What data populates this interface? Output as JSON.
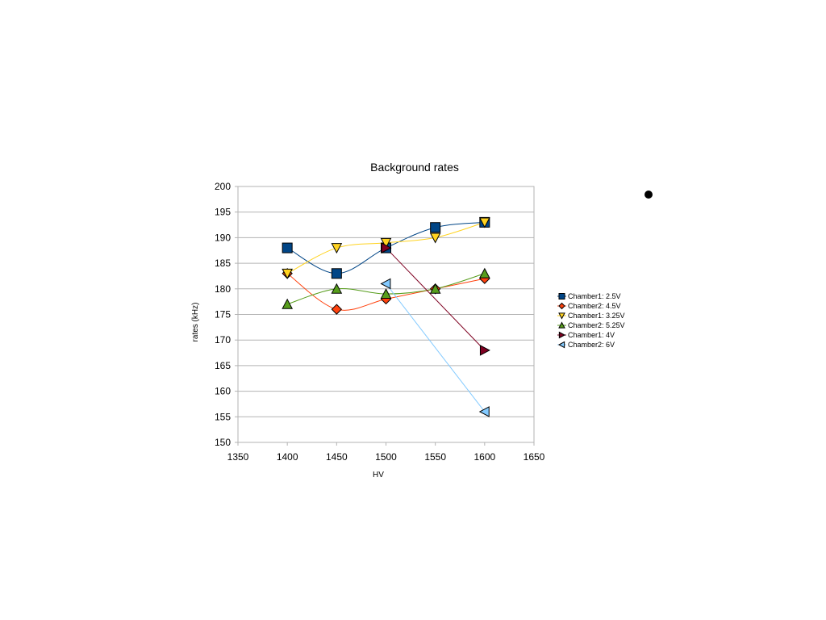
{
  "chart_data": {
    "type": "line",
    "title": "Background rates",
    "xlabel": "HV",
    "ylabel": "rates (kHz)",
    "xlim": [
      1350,
      1650
    ],
    "ylim": [
      150,
      200
    ],
    "x_ticks": [
      1350,
      1400,
      1450,
      1500,
      1550,
      1600,
      1650
    ],
    "y_ticks": [
      150,
      155,
      160,
      165,
      170,
      175,
      180,
      185,
      190,
      195,
      200
    ],
    "grid": "horizontal",
    "legend_position": "right",
    "series": [
      {
        "name": "Chamber1: 2.5V",
        "color": "#004586",
        "marker": "square",
        "smooth": true,
        "x": [
          1400,
          1450,
          1500,
          1550,
          1600
        ],
        "y": [
          188,
          183,
          188,
          192,
          193
        ]
      },
      {
        "name": "Chamber2: 4.5V",
        "color": "#ff420e",
        "marker": "diamond",
        "smooth": true,
        "x": [
          1400,
          1450,
          1500,
          1550,
          1600
        ],
        "y": [
          183,
          176,
          178,
          180,
          182
        ]
      },
      {
        "name": "Chamber1: 3.25V",
        "color": "#ffd320",
        "marker": "triangle-down",
        "smooth": true,
        "x": [
          1400,
          1450,
          1500,
          1550,
          1600
        ],
        "y": [
          183,
          188,
          189,
          190,
          193
        ]
      },
      {
        "name": "Chamber2: 5.25V",
        "color": "#579d1c",
        "marker": "triangle-up",
        "smooth": true,
        "x": [
          1400,
          1450,
          1500,
          1550,
          1600
        ],
        "y": [
          177,
          180,
          179,
          180,
          183
        ]
      },
      {
        "name": "Chamber1: 4V",
        "color": "#7e0021",
        "marker": "triangle-right",
        "smooth": false,
        "x": [
          1500,
          1600
        ],
        "y": [
          188,
          168
        ]
      },
      {
        "name": "Chamber2: 6V",
        "color": "#83caff",
        "marker": "triangle-left",
        "smooth": false,
        "x": [
          1500,
          1600
        ],
        "y": [
          181,
          156
        ]
      }
    ]
  },
  "decoration": {
    "dot_color": "#000000"
  }
}
